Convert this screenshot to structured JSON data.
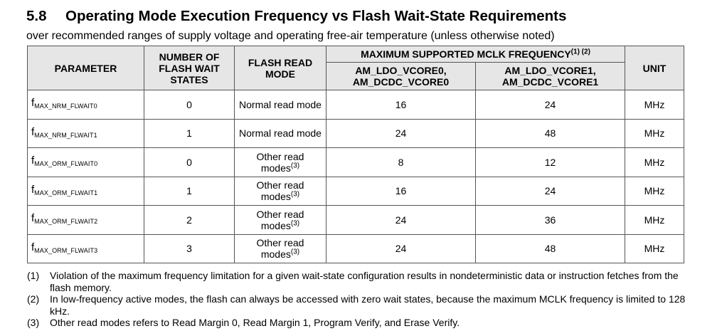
{
  "section": {
    "number": "5.8",
    "title": "Operating Mode Execution Frequency vs Flash Wait-State Requirements",
    "subtitle": "over recommended ranges of supply voltage and operating free-air temperature (unless otherwise noted)"
  },
  "table": {
    "headers": {
      "parameter": "PARAMETER",
      "wait_states": "NUMBER OF FLASH WAIT STATES",
      "read_mode": "FLASH READ MODE",
      "max_freq": "MAXIMUM SUPPORTED MCLK FREQUENCY",
      "max_freq_refs": "(1) (2)",
      "vcore0": "AM_LDO_VCORE0, AM_DCDC_VCORE0",
      "vcore1": "AM_LDO_VCORE1, AM_DCDC_VCORE1",
      "unit": "UNIT"
    },
    "rows": [
      {
        "sym": "f",
        "sub": "MAX_NRM_FLWAIT0",
        "waits": "0",
        "mode": "Normal read mode",
        "ref": "",
        "vcore0": "16",
        "vcore1": "24",
        "unit": "MHz"
      },
      {
        "sym": "f",
        "sub": "MAX_NRM_FLWAIT1",
        "waits": "1",
        "mode": "Normal read mode",
        "ref": "",
        "vcore0": "24",
        "vcore1": "48",
        "unit": "MHz"
      },
      {
        "sym": "f",
        "sub": "MAX_ORM_FLWAIT0",
        "waits": "0",
        "mode": "Other read modes",
        "ref": "(3)",
        "vcore0": "8",
        "vcore1": "12",
        "unit": "MHz"
      },
      {
        "sym": "f",
        "sub": "MAX_ORM_FLWAIT1",
        "waits": "1",
        "mode": "Other read modes",
        "ref": "(3)",
        "vcore0": "16",
        "vcore1": "24",
        "unit": "MHz"
      },
      {
        "sym": "f",
        "sub": "MAX_ORM_FLWAIT2",
        "waits": "2",
        "mode": "Other read modes",
        "ref": "(3)",
        "vcore0": "24",
        "vcore1": "36",
        "unit": "MHz"
      },
      {
        "sym": "f",
        "sub": "MAX_ORM_FLWAIT3",
        "waits": "3",
        "mode": "Other read modes",
        "ref": "(3)",
        "vcore0": "24",
        "vcore1": "48",
        "unit": "MHz"
      }
    ]
  },
  "footnotes": [
    {
      "id": "(1)",
      "text": "Violation of the maximum frequency limitation for a given wait-state configuration results in nondeterministic data or instruction fetches from the flash memory."
    },
    {
      "id": "(2)",
      "text": "In low-frequency active modes, the flash can always be accessed with zero wait states, because the maximum MCLK frequency is limited to 128 kHz."
    },
    {
      "id": "(3)",
      "text": "Other read modes refers to Read Margin 0, Read Margin 1, Program Verify, and Erase Verify."
    }
  ]
}
